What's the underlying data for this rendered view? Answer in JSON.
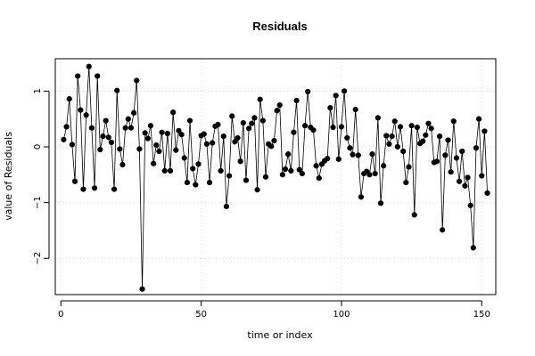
{
  "chart_data": {
    "type": "line",
    "title": "Residuals",
    "xlabel": "time or index",
    "ylabel": "value of Residuals",
    "xlim": [
      -2,
      155
    ],
    "ylim": [
      -2.65,
      1.58
    ],
    "xticks": [
      0,
      50,
      100,
      150
    ],
    "yticks": [
      -2,
      -1,
      0,
      1
    ],
    "grid": true,
    "markers": "filled-circle",
    "x": [
      1,
      2,
      3,
      4,
      5,
      6,
      7,
      8,
      9,
      10,
      11,
      12,
      13,
      14,
      15,
      16,
      17,
      18,
      19,
      20,
      21,
      22,
      23,
      24,
      25,
      26,
      27,
      28,
      29,
      30,
      31,
      32,
      33,
      34,
      35,
      36,
      37,
      38,
      39,
      40,
      41,
      42,
      43,
      44,
      45,
      46,
      47,
      48,
      49,
      50,
      51,
      52,
      53,
      54,
      55,
      56,
      57,
      58,
      59,
      60,
      61,
      62,
      63,
      64,
      65,
      66,
      67,
      68,
      69,
      70,
      71,
      72,
      73,
      74,
      75,
      76,
      77,
      78,
      79,
      80,
      81,
      82,
      83,
      84,
      85,
      86,
      87,
      88,
      89,
      90,
      91,
      92,
      93,
      94,
      95,
      96,
      97,
      98,
      99,
      100,
      101,
      102,
      103,
      104,
      105,
      106,
      107,
      108,
      109,
      110,
      111,
      112,
      113,
      114,
      115,
      116,
      117,
      118,
      119,
      120,
      121,
      122,
      123,
      124,
      125,
      126,
      127,
      128,
      129,
      130,
      131,
      132,
      133,
      134,
      135,
      136,
      137,
      138,
      139,
      140,
      141,
      142,
      143,
      144,
      145,
      146,
      147,
      148,
      149,
      150,
      151,
      152
    ],
    "y": [
      0.13,
      0.36,
      0.86,
      0.04,
      -0.62,
      1.27,
      0.66,
      -0.76,
      0.57,
      1.44,
      0.34,
      -0.74,
      1.27,
      -0.05,
      0.19,
      0.47,
      0.17,
      0.08,
      -0.76,
      1.01,
      -0.04,
      -0.32,
      0.34,
      0.5,
      0.34,
      0.61,
      1.19,
      -0.04,
      -2.55,
      0.25,
      0.15,
      0.38,
      -0.3,
      0.03,
      -0.08,
      0.26,
      -0.43,
      0.24,
      -0.43,
      0.62,
      -0.06,
      0.29,
      0.22,
      -0.2,
      -0.64,
      0.47,
      -0.39,
      -0.68,
      -0.31,
      0.2,
      0.23,
      0.05,
      -0.64,
      0.07,
      0.37,
      0.4,
      -0.43,
      0.19,
      -1.07,
      -0.52,
      0.55,
      0.09,
      0.16,
      -0.26,
      0.43,
      -0.6,
      0.33,
      0.42,
      0.52,
      -0.77,
      0.85,
      0.47,
      -0.54,
      0.05,
      0.01,
      0.11,
      0.65,
      0.75,
      -0.5,
      -0.4,
      -0.13,
      -0.43,
      0.26,
      0.83,
      -0.41,
      -0.48,
      0.38,
      0.99,
      0.35,
      0.3,
      -0.34,
      -0.56,
      -0.31,
      -0.25,
      -0.21,
      0.7,
      0.35,
      0.92,
      -0.22,
      0.36,
      1.0,
      0.16,
      -0.02,
      -0.14,
      0.67,
      -0.15,
      -0.9,
      -0.48,
      -0.44,
      -0.5,
      -0.13,
      -0.48,
      0.52,
      -1.01,
      -0.34,
      0.2,
      0.05,
      0.19,
      0.46,
      0.0,
      0.36,
      -0.08,
      -0.64,
      -0.36,
      0.38,
      -1.22,
      0.35,
      0.06,
      0.1,
      0.21,
      0.42,
      0.33,
      -0.28,
      -0.26,
      0.19,
      -1.49,
      -0.15,
      0.12,
      -0.45,
      0.46,
      -0.2,
      -0.62,
      -0.08,
      -0.7,
      -0.55,
      -1.05,
      -1.81,
      -0.02,
      0.5,
      -0.52,
      0.28,
      -0.83
    ]
  }
}
